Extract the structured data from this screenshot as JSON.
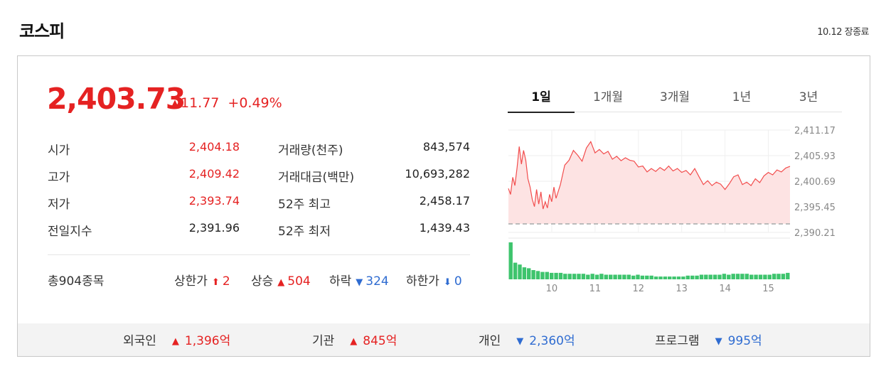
{
  "header": {
    "title": "코스피",
    "status": "10.12 장종료"
  },
  "quote": {
    "price": "2,403.73",
    "change": "11.77",
    "change_pct": "+0.49%",
    "up_marker": "▲"
  },
  "stats": [
    {
      "label": "시가",
      "value": "2,404.18",
      "label2": "거래량(천주)",
      "value2": "843,574"
    },
    {
      "label": "고가",
      "value": "2,409.42",
      "label2": "거래대금(백만)",
      "value2": "10,693,282"
    },
    {
      "label": "저가",
      "value": "2,393.74",
      "label2": "52주 최고",
      "value2": "2,458.17"
    },
    {
      "label": "전일지수",
      "value": "2,391.96",
      "label2": "52주 최저",
      "value2": "1,439.43"
    }
  ],
  "counts": {
    "total": "총904종목",
    "upper_limit": {
      "label": "상한가",
      "value": "2",
      "marker": "⬆"
    },
    "rise": {
      "label": "상승",
      "value": "504",
      "marker": "▲"
    },
    "fall": {
      "label": "하락",
      "value": "324",
      "marker": "▼"
    },
    "lower_limit": {
      "label": "하한가",
      "value": "0",
      "marker": "⬇"
    }
  },
  "tabs": [
    {
      "label": "1일",
      "active": true
    },
    {
      "label": "1개월"
    },
    {
      "label": "3개월"
    },
    {
      "label": "1년"
    },
    {
      "label": "3년"
    }
  ],
  "investors": [
    {
      "label": "외국인",
      "marker": "▲",
      "value": "1,396억",
      "dir": "up"
    },
    {
      "label": "기관",
      "marker": "▲",
      "value": "845억",
      "dir": "up"
    },
    {
      "label": "개인",
      "marker": "▼",
      "value": "2,360억",
      "dir": "down"
    },
    {
      "label": "프로그램",
      "marker": "▼",
      "value": "995억",
      "dir": "down"
    }
  ],
  "colors": {
    "up": "#e52222",
    "down": "#2f6cd1",
    "volume": "#3ec46d",
    "line": "#f24d4d",
    "fill": "#fde3e3"
  },
  "chart_data": {
    "type": "line",
    "x_ticks": [
      "10",
      "11",
      "12",
      "13",
      "14",
      "15"
    ],
    "y_ticks": [
      "2,411.17",
      "2,405.93",
      "2,400.69",
      "2,395.45",
      "2,390.21"
    ],
    "ylim": [
      2390.21,
      2411.17
    ],
    "baseline": 2391.96,
    "x_range": [
      9.0,
      15.5
    ],
    "series": [
      {
        "values": [
          [
            9.0,
            2399.2
          ],
          [
            9.05,
            2398.0
          ],
          [
            9.1,
            2401.5
          ],
          [
            9.15,
            2399.8
          ],
          [
            9.2,
            2403.5
          ],
          [
            9.25,
            2407.8
          ],
          [
            9.3,
            2404.2
          ],
          [
            9.35,
            2407.0
          ],
          [
            9.4,
            2405.0
          ],
          [
            9.45,
            2401.2
          ],
          [
            9.5,
            2399.5
          ],
          [
            9.55,
            2397.0
          ],
          [
            9.6,
            2395.5
          ],
          [
            9.65,
            2399.0
          ],
          [
            9.7,
            2396.0
          ],
          [
            9.75,
            2398.5
          ],
          [
            9.8,
            2395.0
          ],
          [
            9.85,
            2396.5
          ],
          [
            9.9,
            2395.2
          ],
          [
            9.95,
            2398.0
          ],
          [
            10.0,
            2396.5
          ],
          [
            10.05,
            2399.5
          ],
          [
            10.1,
            2397.2
          ],
          [
            10.2,
            2400.0
          ],
          [
            10.3,
            2404.0
          ],
          [
            10.4,
            2405.0
          ],
          [
            10.5,
            2407.0
          ],
          [
            10.6,
            2406.0
          ],
          [
            10.7,
            2404.8
          ],
          [
            10.8,
            2407.5
          ],
          [
            10.9,
            2408.8
          ],
          [
            11.0,
            2406.5
          ],
          [
            11.1,
            2407.2
          ],
          [
            11.2,
            2406.3
          ],
          [
            11.3,
            2406.8
          ],
          [
            11.4,
            2405.2
          ],
          [
            11.5,
            2405.8
          ],
          [
            11.6,
            2404.9
          ],
          [
            11.7,
            2405.5
          ],
          [
            11.8,
            2405.0
          ],
          [
            11.9,
            2404.8
          ],
          [
            12.0,
            2403.6
          ],
          [
            12.1,
            2403.8
          ],
          [
            12.2,
            2402.6
          ],
          [
            12.3,
            2403.3
          ],
          [
            12.4,
            2402.7
          ],
          [
            12.5,
            2403.5
          ],
          [
            12.6,
            2402.9
          ],
          [
            12.7,
            2403.8
          ],
          [
            12.8,
            2402.8
          ],
          [
            12.9,
            2403.3
          ],
          [
            13.0,
            2402.5
          ],
          [
            13.1,
            2402.9
          ],
          [
            13.2,
            2402.0
          ],
          [
            13.3,
            2403.3
          ],
          [
            13.4,
            2401.6
          ],
          [
            13.5,
            2400.0
          ],
          [
            13.6,
            2400.8
          ],
          [
            13.7,
            2399.8
          ],
          [
            13.8,
            2400.5
          ],
          [
            13.9,
            2400.1
          ],
          [
            14.0,
            2399.0
          ],
          [
            14.1,
            2400.2
          ],
          [
            14.2,
            2401.6
          ],
          [
            14.3,
            2402.0
          ],
          [
            14.4,
            2400.0
          ],
          [
            14.5,
            2400.5
          ],
          [
            14.6,
            2399.8
          ],
          [
            14.7,
            2401.2
          ],
          [
            14.8,
            2400.4
          ],
          [
            14.9,
            2401.8
          ],
          [
            15.0,
            2402.5
          ],
          [
            15.1,
            2402.0
          ],
          [
            15.2,
            2403.0
          ],
          [
            15.3,
            2402.6
          ],
          [
            15.4,
            2403.4
          ],
          [
            15.5,
            2403.73
          ]
        ]
      }
    ],
    "volume": [
      40,
      18,
      16,
      13,
      12,
      10,
      9,
      8,
      8,
      7,
      7,
      7,
      6,
      6,
      6,
      6,
      6,
      5,
      6,
      5,
      6,
      5,
      5,
      5,
      5,
      5,
      5,
      4,
      5,
      4,
      4,
      4,
      3,
      3,
      3,
      3,
      3,
      3,
      3,
      4,
      4,
      4,
      5,
      5,
      5,
      5,
      5,
      6,
      5,
      6,
      6,
      6,
      6,
      5,
      5,
      5,
      5,
      5,
      6,
      6,
      6,
      7
    ]
  }
}
